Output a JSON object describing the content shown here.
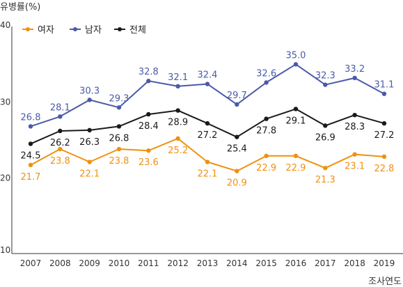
{
  "chart_data": {
    "type": "line",
    "ylabel": "유병률(%)",
    "xlabel": "조사연도",
    "ylim": [
      10,
      40
    ],
    "yticks": [
      10,
      20,
      30,
      40
    ],
    "grid": false,
    "legend_position": "top-left",
    "categories": [
      "2007",
      "2008",
      "2009",
      "2010",
      "2011",
      "2012",
      "2013",
      "2014",
      "2015",
      "2016",
      "2017",
      "2018",
      "2019"
    ],
    "series": [
      {
        "name": "여자",
        "color": "#f0900f",
        "label_position": "below",
        "values": [
          21.7,
          23.8,
          22.1,
          23.8,
          23.6,
          25.2,
          22.1,
          20.9,
          22.9,
          22.9,
          21.3,
          23.1,
          22.8
        ]
      },
      {
        "name": "남자",
        "color": "#4a5aa8",
        "label_position": "above",
        "values": [
          26.8,
          28.1,
          30.3,
          29.3,
          32.8,
          32.1,
          32.4,
          29.7,
          32.6,
          35.0,
          32.3,
          33.2,
          31.1
        ]
      },
      {
        "name": "전체",
        "color": "#1a1a1a",
        "label_position": "below",
        "values": [
          24.5,
          26.2,
          26.3,
          26.8,
          28.4,
          28.9,
          27.2,
          25.4,
          27.8,
          29.1,
          26.9,
          28.3,
          27.2
        ]
      }
    ]
  }
}
